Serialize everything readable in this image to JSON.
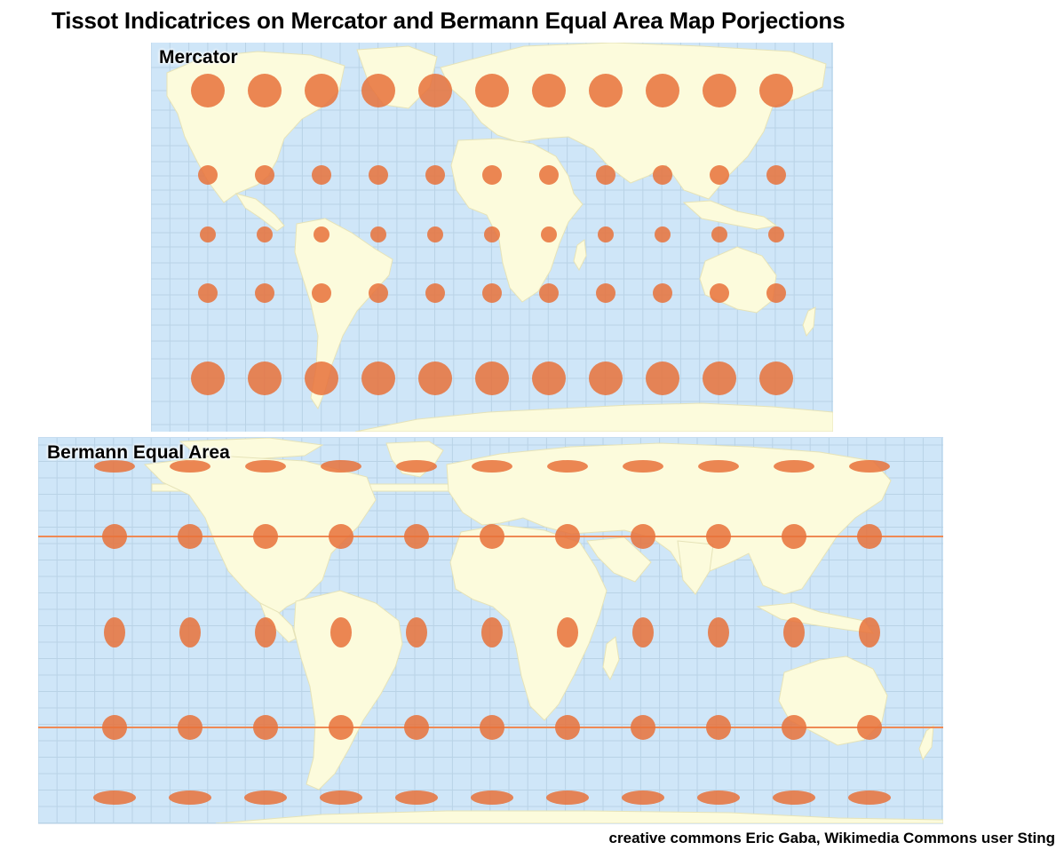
{
  "title": "Tissot Indicatrices on Mercator and Bermann Equal Area Map Porjections",
  "maps": {
    "mercator": {
      "label": "Mercator"
    },
    "bermann": {
      "label": "Bermann Equal Area"
    }
  },
  "credit": "creative commons Eric Gaba, Wikimedia Commons user Sting",
  "colors": {
    "ocean": "#cfe6f8",
    "land": "#fcfbdc",
    "grid": "#b9d3e6",
    "indicatrix": "#e8713a",
    "reference_line": "#ef8a55"
  }
}
